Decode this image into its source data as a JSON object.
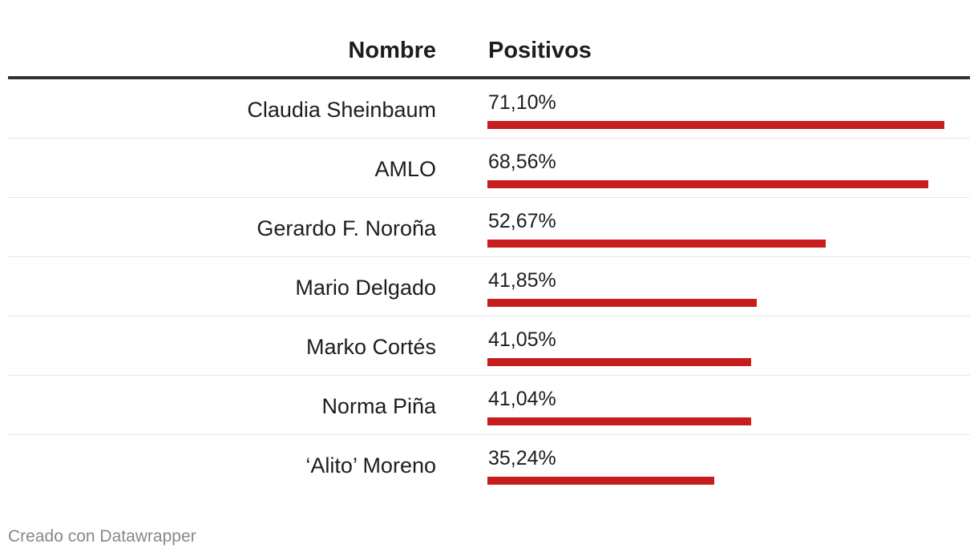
{
  "chart_data": {
    "type": "table",
    "columns": [
      "Nombre",
      "Positivos"
    ],
    "rows": [
      {
        "name": "Claudia Sheinbaum",
        "label": "71,10%",
        "value": 71.1
      },
      {
        "name": "AMLO",
        "label": "68,56%",
        "value": 68.56
      },
      {
        "name": "Gerardo F. Noroña",
        "label": "52,67%",
        "value": 52.67
      },
      {
        "name": "Mario Delgado",
        "label": "41,85%",
        "value": 41.85
      },
      {
        "name": "Marko Cortés",
        "label": "41,05%",
        "value": 41.05
      },
      {
        "name": "Norma Piña",
        "label": "41,04%",
        "value": 41.04
      },
      {
        "name": "‘Alito’ Moreno",
        "label": "35,24%",
        "value": 35.24
      }
    ],
    "bar_color": "#c71e1d",
    "bar_max": 71.1
  },
  "footer": {
    "credit": "Creado con Datawrapper"
  }
}
